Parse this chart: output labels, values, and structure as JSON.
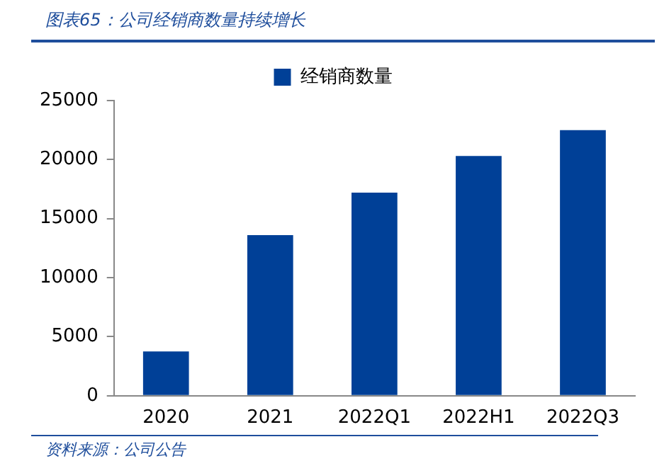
{
  "chart_data": {
    "type": "bar",
    "title": "图表65：公司经销商数量持续增长",
    "categories": [
      "2020",
      "2021",
      "2022Q1",
      "2022H1",
      "2022Q3"
    ],
    "series": [
      {
        "name": "经销商数量",
        "color": "#004097",
        "values": [
          3750,
          13600,
          17200,
          20300,
          22500
        ]
      }
    ],
    "ylim": [
      0,
      25000
    ],
    "yticks": [
      0,
      5000,
      10000,
      15000,
      20000,
      25000
    ],
    "grid": false,
    "legend": "top",
    "annotations": [
      "资料来源：公司公告"
    ]
  }
}
